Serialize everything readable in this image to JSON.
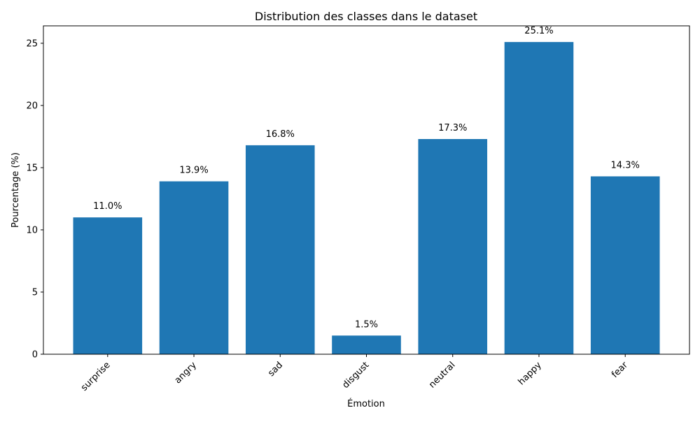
{
  "chart_data": {
    "type": "bar",
    "title": "Distribution des classes dans le dataset",
    "xlabel": "Émotion",
    "ylabel": "Pourcentage (%)",
    "categories": [
      "surprise",
      "angry",
      "sad",
      "disgust",
      "neutral",
      "happy",
      "fear"
    ],
    "values": [
      11.0,
      13.9,
      16.8,
      1.5,
      17.3,
      25.1,
      14.3
    ],
    "value_labels": [
      "11.0%",
      "13.9%",
      "16.8%",
      "1.5%",
      "17.3%",
      "25.1%",
      "14.3%"
    ],
    "yticks": [
      0,
      5,
      10,
      15,
      20,
      25
    ],
    "ytick_labels": [
      "0",
      "5",
      "10",
      "15",
      "20",
      "25"
    ],
    "ylim": [
      0,
      26.4
    ],
    "grid": false,
    "legend": "none",
    "bar_color": "#1f77b4"
  }
}
